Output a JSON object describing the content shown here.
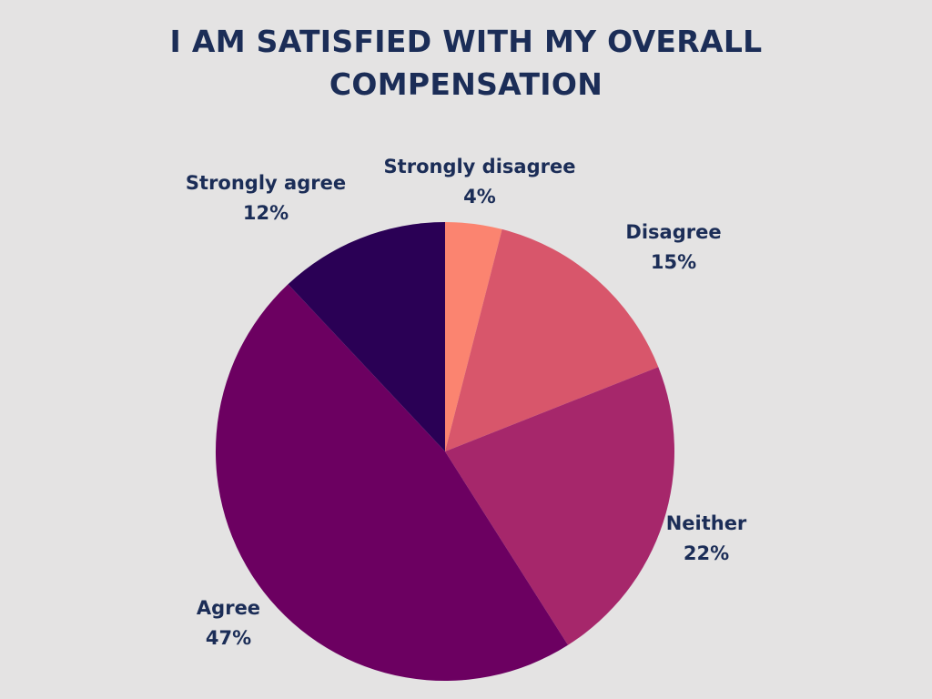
{
  "chart_data": {
    "type": "pie",
    "title": [
      "I AM SATISFIED WITH MY OVERALL",
      "COMPENSATION"
    ],
    "slices": [
      {
        "label": "Strongly disagree",
        "value": 4,
        "display": "4%",
        "color": "#fb8470"
      },
      {
        "label": "Disagree",
        "value": 15,
        "display": "15%",
        "color": "#d8566b"
      },
      {
        "label": "Neither",
        "value": 22,
        "display": "22%",
        "color": "#a6276b"
      },
      {
        "label": "Agree",
        "value": 47,
        "display": "47%",
        "color": "#6c0061"
      },
      {
        "label": "Strongly agree",
        "value": 12,
        "display": "12%",
        "color": "#2a0055"
      }
    ],
    "label_color": "#1b2d57",
    "background": "#e4e3e3",
    "start_angle": "12 o'clock",
    "direction": "clockwise"
  }
}
